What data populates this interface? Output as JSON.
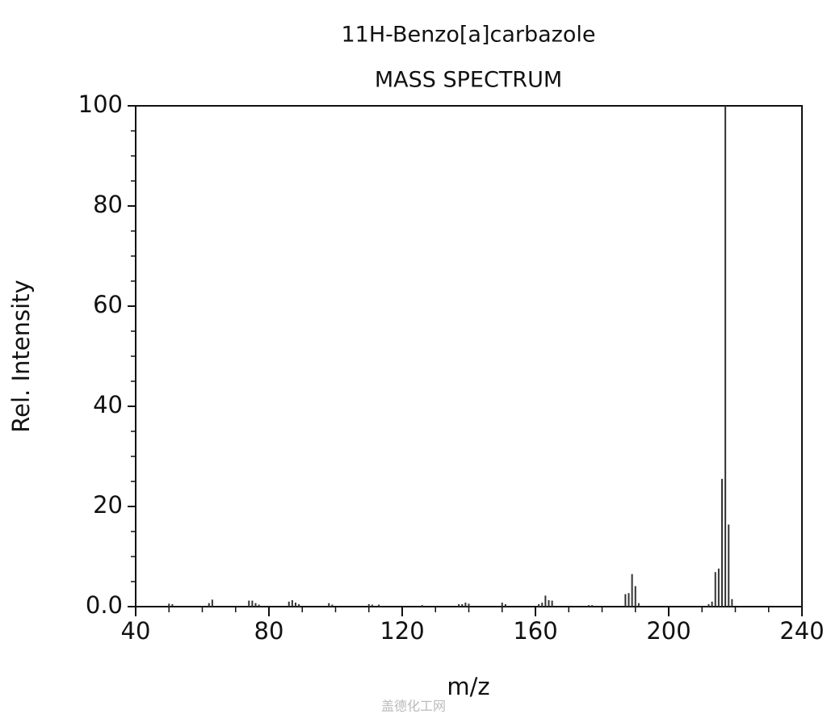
{
  "chart_data": {
    "type": "stem",
    "title": "11H-Benzo[a]carbazole",
    "subtitle": "MASS SPECTRUM",
    "x_label": "m/z",
    "y_label": "Rel. Intensity",
    "watermark": "盖德化工网",
    "color": "#333333",
    "x": [
      50,
      51,
      62,
      63,
      74,
      75,
      76,
      77,
      86,
      87,
      88,
      89,
      98,
      99,
      110,
      111,
      113,
      126,
      137,
      138,
      139,
      140,
      150,
      151,
      161,
      162,
      163,
      164,
      165,
      176,
      177,
      187,
      188,
      189,
      190,
      191,
      212,
      213,
      214,
      215,
      216,
      217,
      218,
      219
    ],
    "values": [
      0.6,
      0.5,
      0.7,
      1.4,
      1.2,
      1.2,
      0.7,
      0.4,
      1.0,
      1.3,
      0.8,
      0.5,
      0.7,
      0.4,
      0.5,
      0.4,
      0.4,
      0.3,
      0.5,
      0.5,
      0.8,
      0.6,
      0.8,
      0.5,
      0.5,
      0.8,
      2.2,
      1.3,
      1.2,
      0.3,
      0.3,
      2.5,
      2.7,
      6.5,
      4.1,
      0.7,
      0.5,
      1.0,
      6.9,
      7.6,
      25.5,
      100,
      16.4,
      1.5
    ],
    "xlim": [
      40,
      240
    ],
    "ylim": [
      0,
      100
    ],
    "xticks": [
      40,
      80,
      120,
      160,
      200,
      240
    ],
    "yticks": [
      {
        "value": 0,
        "label": "0.0"
      },
      20,
      40,
      60,
      80,
      100
    ],
    "xminorticks": [
      50,
      60,
      70,
      90,
      100,
      110,
      130,
      140,
      150,
      170,
      180,
      190,
      210,
      220,
      230
    ],
    "yminorticks": [
      5,
      10,
      15,
      25,
      30,
      35,
      45,
      50,
      55,
      65,
      70,
      75,
      85,
      90,
      95
    ]
  }
}
